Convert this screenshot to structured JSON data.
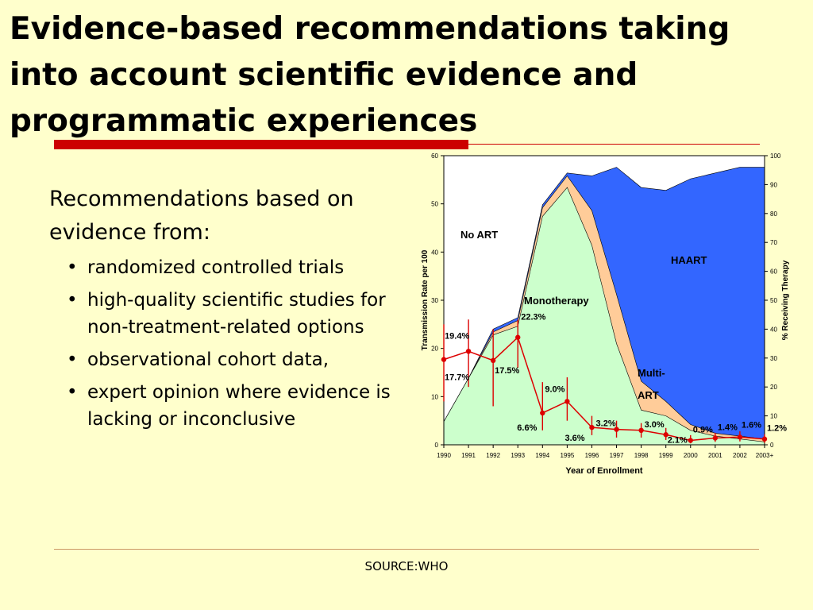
{
  "slide": {
    "title": "Evidence-based recommendations taking into account scientific evidence and programmatic experiences",
    "intro": "Recommendations based on evidence from:",
    "bullets": [
      "randomized controlled trials",
      "high-quality scientific studies for non-treatment-related options",
      "observational cohort data,",
      "expert opinion where evidence is lacking or inconclusive"
    ],
    "source": "SOURCE:WHO"
  },
  "colors": {
    "background": "#FFFFCC",
    "title_bar": "#CC0000",
    "no_art": "#FFFFFF",
    "monotherapy": "#CCFFCC",
    "multi_art": "#FFCC99",
    "haart": "#3366FF",
    "transmission_line": "#DD0000"
  },
  "chart_data": {
    "type": "area",
    "xlabel": "Year of Enrollment",
    "ylabel_left": "Transmission Rate per 100",
    "ylabel_right": "% Receiving Therapy",
    "ylim_left": [
      0,
      60
    ],
    "ylim_right": [
      0,
      100
    ],
    "yticks_left": [
      0,
      10,
      20,
      30,
      40,
      50,
      60
    ],
    "yticks_right": [
      0,
      10,
      20,
      30,
      40,
      50,
      60,
      70,
      80,
      90,
      100
    ],
    "categories": [
      "1990",
      "1991",
      "1992",
      "1993",
      "1994",
      "1995",
      "1996",
      "1997",
      "1998",
      "1999",
      "2000",
      "2001",
      "2002",
      "2003+"
    ],
    "area_labels": [
      {
        "text": "No ART",
        "series": "no_art"
      },
      {
        "text": "Monotherapy",
        "series": "monotherapy"
      },
      {
        "text": "Multi-",
        "series": "multi_art"
      },
      {
        "text": "ART",
        "series": "multi_art"
      },
      {
        "text": "HAART",
        "series": "haart"
      }
    ],
    "series_percent_receiving_therapy": {
      "monotherapy": [
        8,
        23,
        38,
        41,
        79,
        89,
        69,
        35,
        12,
        10,
        5,
        3,
        2,
        1
      ],
      "multi_art_top": [
        8,
        23,
        39,
        43,
        82,
        93,
        81,
        52,
        22,
        15,
        7,
        4,
        3,
        2
      ],
      "total_treated_top": [
        8,
        23,
        40,
        44,
        83,
        94,
        93,
        96,
        89,
        88,
        92,
        94,
        96,
        96
      ]
    },
    "transmission_rate": {
      "values": [
        17.7,
        19.4,
        17.5,
        22.3,
        6.6,
        9.0,
        3.6,
        3.2,
        3.0,
        2.1,
        0.9,
        1.4,
        1.6,
        1.2
      ],
      "ci_low": [
        9,
        12,
        8,
        16,
        3,
        5,
        2,
        1.5,
        1.5,
        1,
        0.3,
        0.6,
        0.7,
        0.4
      ],
      "ci_high": [
        25,
        26,
        24,
        26,
        13,
        14,
        6,
        5,
        4.5,
        3.5,
        2,
        2.5,
        2.8,
        2.2
      ],
      "labels": [
        "17.7%",
        "19.4%",
        "17.5%",
        "22.3%",
        "6.6%",
        "9.0%",
        "3.6%",
        "3.2%",
        "3.0%",
        "2.1%",
        "0.9%",
        "1.4%",
        "1.6%",
        "1.2%"
      ]
    }
  }
}
